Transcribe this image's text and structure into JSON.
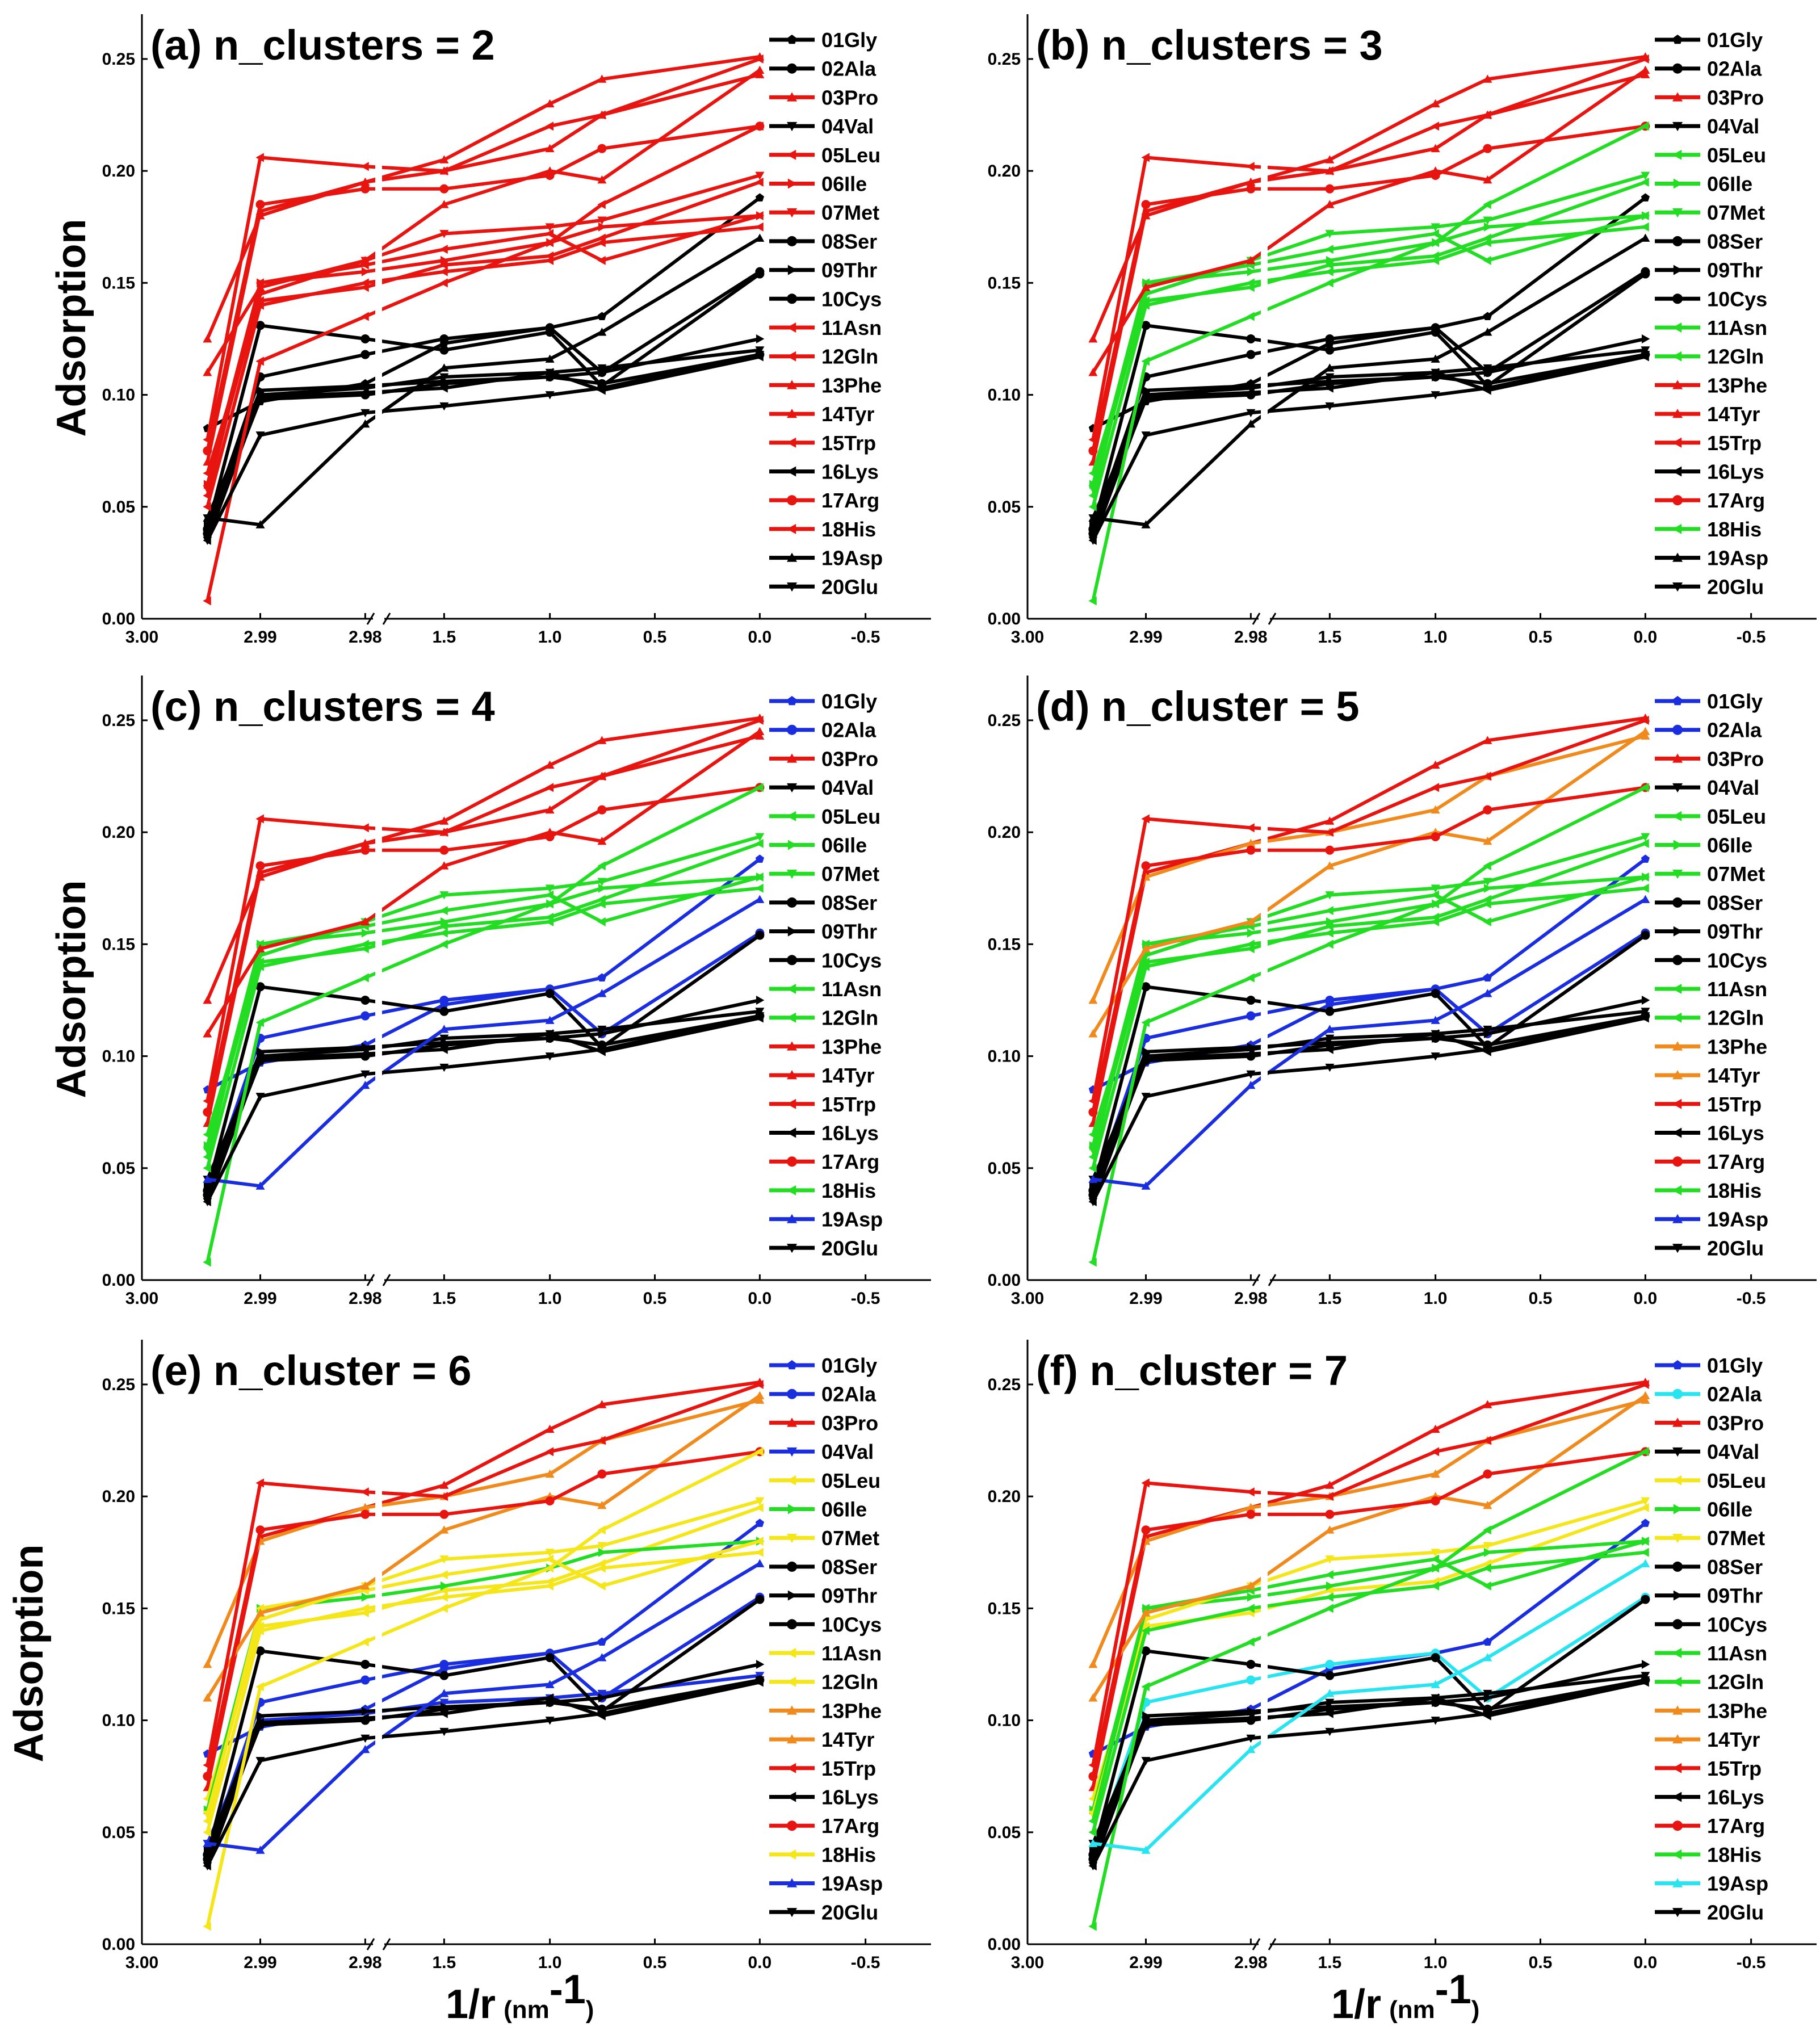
{
  "chart_data": {
    "type": "line",
    "shared": {
      "ylabel": "Adsorption",
      "xlabel": "1/r",
      "xlabel_unit_open": "(nm",
      "xlabel_unit_sup": "-1",
      "xlabel_unit_close": ")",
      "ylim": [
        0,
        0.27
      ],
      "yticks": [
        "0.00",
        "0.05",
        "0.10",
        "0.15",
        "0.20",
        "0.25"
      ],
      "xticks": [
        "3.00",
        "2.99",
        "2.98",
        "1.5",
        "1.0",
        "0.5",
        "0.0",
        "-0.5"
      ],
      "axis_break": "between 2.98 and 1.5",
      "x_points": [
        2.995,
        2.99,
        2.98,
        1.5,
        1.0,
        0.75,
        0.0
      ],
      "series": [
        {
          "name": "01Gly",
          "values": [
            0.085,
            0.097,
            0.105,
            0.123,
            0.13,
            0.135,
            0.188
          ]
        },
        {
          "name": "02Ala",
          "values": [
            0.04,
            0.108,
            0.118,
            0.125,
            0.13,
            0.11,
            0.155
          ]
        },
        {
          "name": "03Pro",
          "values": [
            0.07,
            0.182,
            0.195,
            0.205,
            0.23,
            0.241,
            0.251
          ]
        },
        {
          "name": "04Val",
          "values": [
            0.045,
            0.1,
            0.103,
            0.108,
            0.11,
            0.112,
            0.12
          ]
        },
        {
          "name": "05Leu",
          "values": [
            0.065,
            0.142,
            0.148,
            0.158,
            0.162,
            0.17,
            0.195
          ]
        },
        {
          "name": "06Ile",
          "values": [
            0.06,
            0.15,
            0.155,
            0.16,
            0.168,
            0.175,
            0.18
          ]
        },
        {
          "name": "07Met",
          "values": [
            0.058,
            0.145,
            0.16,
            0.172,
            0.175,
            0.178,
            0.198
          ]
        },
        {
          "name": "08Ser",
          "values": [
            0.038,
            0.098,
            0.1,
            0.105,
            0.108,
            0.105,
            0.118
          ]
        },
        {
          "name": "09Thr",
          "values": [
            0.042,
            0.102,
            0.104,
            0.106,
            0.108,
            0.11,
            0.125
          ]
        },
        {
          "name": "10Cys",
          "values": [
            0.04,
            0.131,
            0.125,
            0.12,
            0.128,
            0.104,
            0.154
          ]
        },
        {
          "name": "11Asn",
          "values": [
            0.05,
            0.14,
            0.15,
            0.155,
            0.16,
            0.168,
            0.175
          ]
        },
        {
          "name": "12Gln",
          "values": [
            0.055,
            0.15,
            0.158,
            0.165,
            0.172,
            0.16,
            0.18
          ]
        },
        {
          "name": "13Phe",
          "values": [
            0.11,
            0.148,
            0.16,
            0.185,
            0.2,
            0.196,
            0.245
          ]
        },
        {
          "name": "14Tyr",
          "values": [
            0.125,
            0.18,
            0.195,
            0.2,
            0.21,
            0.225,
            0.243
          ]
        },
        {
          "name": "15Trp",
          "values": [
            0.08,
            0.206,
            0.202,
            0.2,
            0.22,
            0.225,
            0.25
          ]
        },
        {
          "name": "16Lys",
          "values": [
            0.035,
            0.099,
            0.101,
            0.103,
            0.11,
            0.102,
            0.117
          ]
        },
        {
          "name": "17Arg",
          "values": [
            0.075,
            0.185,
            0.192,
            0.192,
            0.198,
            0.21,
            0.22
          ]
        },
        {
          "name": "18His",
          "values": [
            0.008,
            0.115,
            0.135,
            0.15,
            0.168,
            0.185,
            0.22
          ]
        },
        {
          "name": "19Asp",
          "values": [
            0.045,
            0.042,
            0.087,
            0.112,
            0.116,
            0.128,
            0.17
          ]
        },
        {
          "name": "20Glu",
          "values": [
            0.035,
            0.082,
            0.092,
            0.095,
            0.1,
            0.103,
            0.118
          ]
        }
      ],
      "markers": [
        "pentagon",
        "circle",
        "triangle-up",
        "triangle-down",
        "triangle-left",
        "triangle-right",
        "triangle-down",
        "circle",
        "triangle-right",
        "circle",
        "triangle-left",
        "triangle-left",
        "triangle-up",
        "triangle-up",
        "triangle-left",
        "triangle-left",
        "circle",
        "triangle-left",
        "triangle-up",
        "triangle-down"
      ]
    },
    "panels": [
      {
        "title": "(a) n_clusters = 2",
        "colors": [
          "#000000",
          "#000000",
          "#e8140f",
          "#000000",
          "#e8140f",
          "#e8140f",
          "#e8140f",
          "#000000",
          "#000000",
          "#000000",
          "#e8140f",
          "#e8140f",
          "#e8140f",
          "#e8140f",
          "#e8140f",
          "#000000",
          "#e8140f",
          "#e8140f",
          "#000000",
          "#000000"
        ]
      },
      {
        "title": "(b) n_clusters = 3",
        "colors": [
          "#000000",
          "#000000",
          "#e8140f",
          "#000000",
          "#22dd22",
          "#22dd22",
          "#22dd22",
          "#000000",
          "#000000",
          "#000000",
          "#22dd22",
          "#22dd22",
          "#e8140f",
          "#e8140f",
          "#e8140f",
          "#000000",
          "#e8140f",
          "#22dd22",
          "#000000",
          "#000000"
        ]
      },
      {
        "title": "(c) n_clusters = 4",
        "colors": [
          "#1a2ee0",
          "#1a2ee0",
          "#e8140f",
          "#000000",
          "#22dd22",
          "#22dd22",
          "#22dd22",
          "#000000",
          "#000000",
          "#000000",
          "#22dd22",
          "#22dd22",
          "#e8140f",
          "#e8140f",
          "#e8140f",
          "#000000",
          "#e8140f",
          "#22dd22",
          "#1a2ee0",
          "#000000"
        ]
      },
      {
        "title": "(d) n_cluster = 5",
        "colors": [
          "#1a2ee0",
          "#1a2ee0",
          "#e8140f",
          "#000000",
          "#22dd22",
          "#22dd22",
          "#22dd22",
          "#000000",
          "#000000",
          "#000000",
          "#22dd22",
          "#22dd22",
          "#f08a1c",
          "#f08a1c",
          "#e8140f",
          "#000000",
          "#e8140f",
          "#22dd22",
          "#1a2ee0",
          "#000000"
        ]
      },
      {
        "title": "(e) n_cluster = 6",
        "colors": [
          "#1a2ee0",
          "#1a2ee0",
          "#e8140f",
          "#1a2ee0",
          "#f5e61a",
          "#22dd22",
          "#f5e61a",
          "#000000",
          "#000000",
          "#000000",
          "#f5e61a",
          "#f5e61a",
          "#f08a1c",
          "#f08a1c",
          "#e8140f",
          "#000000",
          "#e8140f",
          "#f5e61a",
          "#1a2ee0",
          "#000000"
        ]
      },
      {
        "title": "(f) n_cluster = 7",
        "colors": [
          "#1a2ee0",
          "#28e4f0",
          "#e8140f",
          "#000000",
          "#f5e61a",
          "#22dd22",
          "#f5e61a",
          "#000000",
          "#000000",
          "#000000",
          "#22dd22",
          "#22dd22",
          "#f08a1c",
          "#f08a1c",
          "#e8140f",
          "#000000",
          "#e8140f",
          "#22dd22",
          "#28e4f0",
          "#000000"
        ]
      }
    ]
  }
}
